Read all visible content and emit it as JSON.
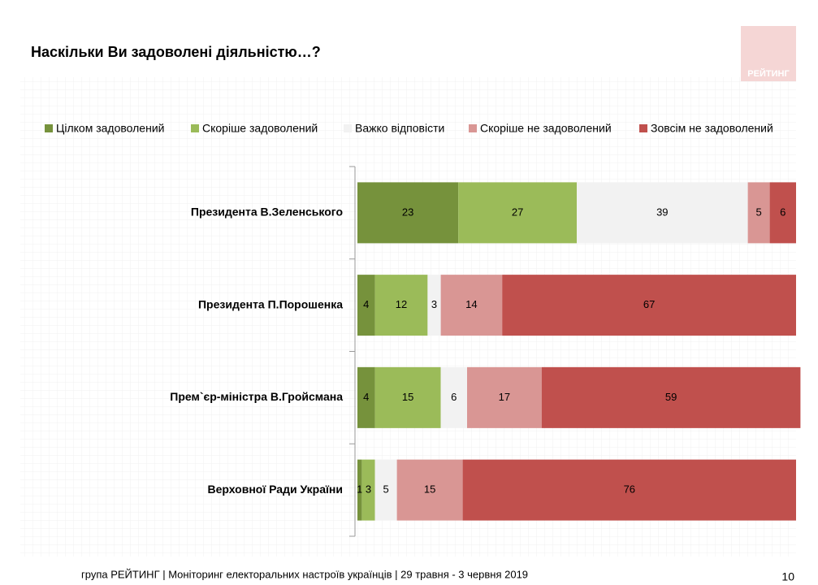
{
  "chart_data": {
    "type": "stacked-bar-horizontal",
    "title": "Наскільки Ви задоволені діяльністю…?",
    "categories": [
      "Президента В.Зеленського",
      "Президента П.Порошенка",
      "Прем`єр-міністра В.Гройсмана",
      "Верховної Ради України"
    ],
    "series": [
      {
        "name": "Цілком задоволений",
        "color": "#76923c",
        "values": [
          23,
          4,
          4,
          1
        ]
      },
      {
        "name": "Скоріше задоволений",
        "color": "#9bbb59",
        "values": [
          27,
          12,
          15,
          3
        ]
      },
      {
        "name": "Важко відповісти",
        "color": "#f2f2f2",
        "values": [
          39,
          3,
          6,
          5
        ]
      },
      {
        "name": "Скоріше не задоволений",
        "color": "#d99694",
        "values": [
          5,
          14,
          17,
          15
        ]
      },
      {
        "name": "Зовсім не задоволений",
        "color": "#c0504d",
        "values": [
          6,
          67,
          59,
          76
        ]
      }
    ],
    "xlim": [
      0,
      100
    ],
    "legend": "top"
  },
  "logo": "РЕЙТИНГ",
  "footer": "група РЕЙТИНГ | Моніторинг електоральних настроїв українців  | 29 травня - 3 червня 2019",
  "page_number": "10"
}
